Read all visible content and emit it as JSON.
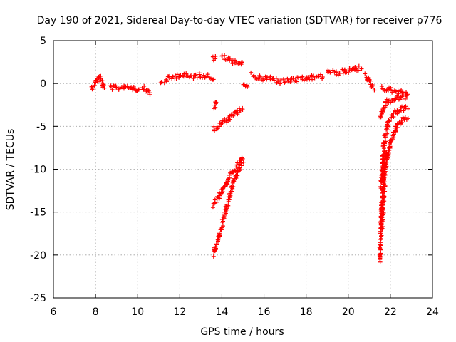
{
  "chart_data": {
    "type": "scatter",
    "title": "Day 190 of 2021, Sidereal Day-to-day VTEC variation (SDTVAR) for receiver p776",
    "xlabel": "GPS time / hours",
    "ylabel": "SDTVAR / TECUs",
    "xlim": [
      6,
      24
    ],
    "ylim": [
      -25,
      5
    ],
    "xticks": [
      "6",
      "8",
      "10",
      "12",
      "14",
      "16",
      "18",
      "20",
      "22",
      "24"
    ],
    "yticks": [
      "5",
      "0",
      "-5",
      "-10",
      "-15",
      "-20",
      "-25"
    ],
    "grid": true,
    "marker": "+",
    "color": "#ff0000",
    "segments": [
      {
        "x": [
          7.8,
          8.0,
          8.2,
          8.4
        ],
        "y": [
          -0.5,
          0.2,
          0.8,
          -0.6
        ]
      },
      {
        "x": [
          8.7,
          9.0,
          9.4,
          9.8,
          10.1
        ],
        "y": [
          -0.4,
          -0.6,
          -0.3,
          -0.5,
          -0.8
        ]
      },
      {
        "x": [
          10.2,
          10.4,
          10.6
        ],
        "y": [
          -0.3,
          -0.8,
          -1.2
        ]
      },
      {
        "x": [
          11.1,
          11.5,
          12.0,
          12.5,
          13.0,
          13.6
        ],
        "y": [
          0.0,
          0.6,
          1.0,
          0.8,
          1.0,
          0.7
        ]
      },
      {
        "x": [
          13.6,
          13.7
        ],
        "y": [
          2.9,
          3.1
        ]
      },
      {
        "x": [
          13.6,
          13.75
        ],
        "y": [
          -2.8,
          -2.3
        ]
      },
      {
        "x": [
          14.0,
          14.3,
          14.7,
          15.0
        ],
        "y": [
          3.2,
          2.8,
          2.5,
          2.3
        ]
      },
      {
        "x": [
          13.6,
          14.0,
          14.4,
          14.7,
          15.0
        ],
        "y": [
          -5.4,
          -4.6,
          -4.0,
          -3.4,
          -2.9
        ]
      },
      {
        "x": [
          13.6,
          13.9,
          14.2,
          14.5,
          14.8,
          15.0
        ],
        "y": [
          -14.3,
          -13.0,
          -11.6,
          -10.4,
          -9.3,
          -8.8
        ]
      },
      {
        "x": [
          13.6,
          13.9,
          14.2,
          14.5,
          14.8,
          15.0
        ],
        "y": [
          -20.0,
          -17.5,
          -14.5,
          -11.8,
          -10.0,
          -9.3
        ]
      },
      {
        "x": [
          15.0,
          15.2
        ],
        "y": [
          -0.2,
          -0.4
        ]
      },
      {
        "x": [
          15.4,
          15.8,
          16.3,
          16.8,
          17.3,
          17.8,
          18.3,
          18.8
        ],
        "y": [
          1.0,
          0.6,
          0.6,
          0.2,
          0.4,
          0.5,
          0.7,
          0.8
        ]
      },
      {
        "x": [
          19.0,
          19.4,
          19.8,
          20.2,
          20.6
        ],
        "y": [
          1.5,
          1.2,
          1.4,
          1.6,
          1.8
        ]
      },
      {
        "x": [
          20.8,
          21.0,
          21.2
        ],
        "y": [
          1.0,
          0.2,
          -0.6
        ]
      },
      {
        "x": [
          21.6,
          21.9,
          22.2,
          22.5,
          22.8
        ],
        "y": [
          -0.5,
          -0.7,
          -0.8,
          -1.0,
          -1.2
        ]
      },
      {
        "x": [
          21.5,
          21.8,
          22.2,
          22.5,
          22.8
        ],
        "y": [
          -4.0,
          -2.2,
          -1.8,
          -1.6,
          -1.5
        ]
      },
      {
        "x": [
          21.55,
          21.7,
          21.9,
          22.2,
          22.5,
          22.8
        ],
        "y": [
          -12.0,
          -7.0,
          -4.5,
          -3.4,
          -3.0,
          -2.8
        ]
      },
      {
        "x": [
          21.6,
          21.75,
          22.0,
          22.3,
          22.6,
          22.8
        ],
        "y": [
          -17.0,
          -10.0,
          -6.8,
          -5.0,
          -4.2,
          -3.9
        ]
      },
      {
        "x": [
          21.5,
          21.6,
          21.7,
          21.8
        ],
        "y": [
          -20.7,
          -14.0,
          -10.0,
          -8.0
        ]
      }
    ]
  }
}
